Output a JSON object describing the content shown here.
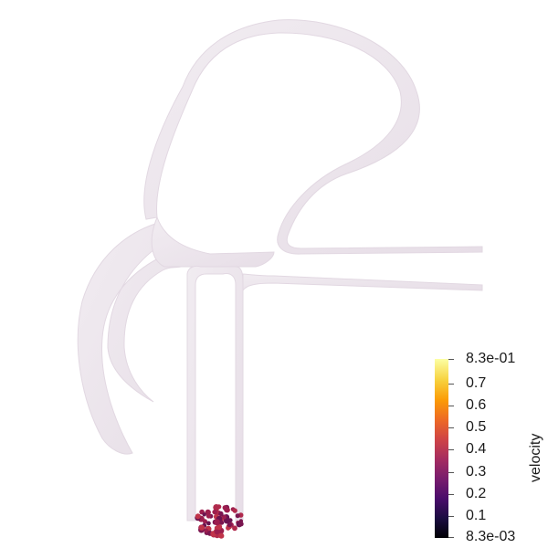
{
  "colorbar": {
    "title": "velocity",
    "max_label": "8.3e-01",
    "min_label": "8.3e-03",
    "ticks": [
      "0.7",
      "0.6",
      "0.5",
      "0.4",
      "0.3",
      "0.2",
      "0.1"
    ],
    "colormap": "inferno"
  },
  "geometry_color": "#ece4ec",
  "particle_color": "#9c1e4e"
}
